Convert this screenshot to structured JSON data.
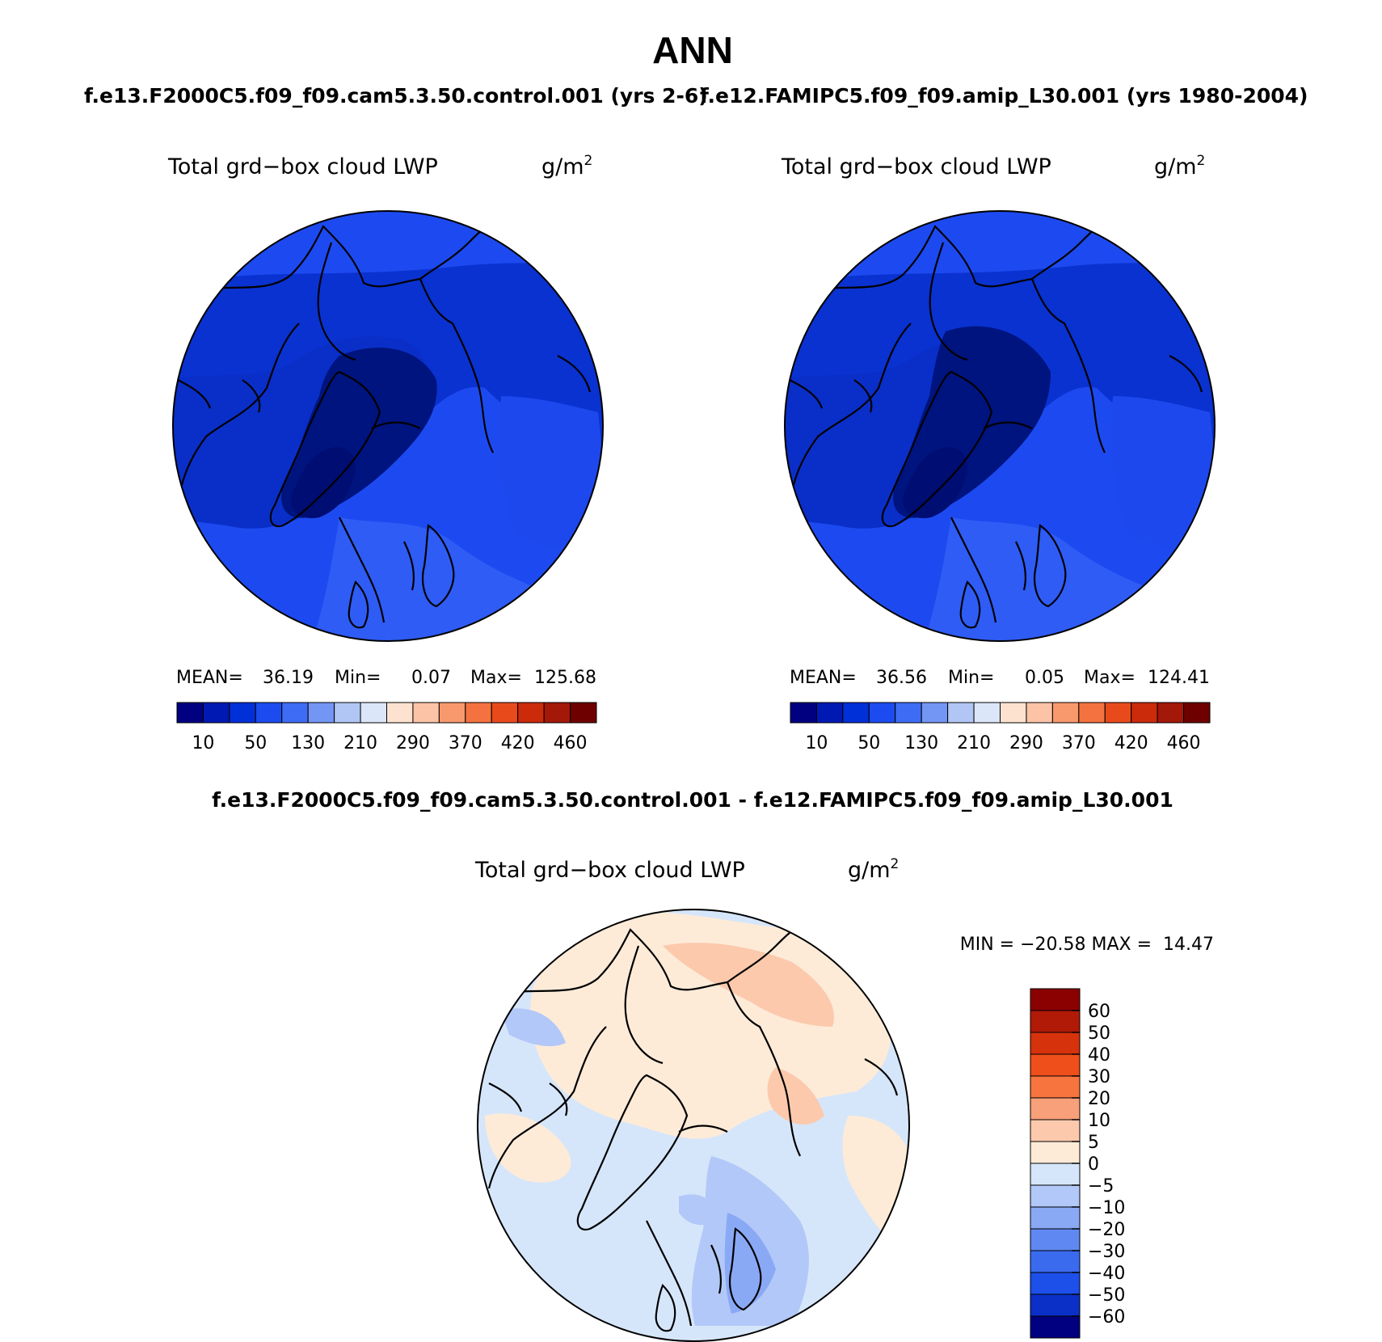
{
  "title": "ANN",
  "subtitle": {
    "case1": "f.e13.F2000C5.f09_f09.cam5.3.50.control.001 (yrs 2-6)",
    "case2": "f.e12.FAMIPC5.f09_f09.amip_L30.001 (yrs 1980-2004)"
  },
  "diff_title": "f.e13.F2000C5.f09_f09.cam5.3.50.control.001 - f.e12.FAMIPC5.f09_f09.amip_L30.001",
  "variable": "Total grd−box cloud LWP",
  "units_base": "g/m",
  "units_exp": "2",
  "panel1": {
    "mean_label": "MEAN=",
    "mean": "36.19",
    "min_label": "Min=",
    "min": "0.07",
    "max_label": "Max=",
    "max": "125.68"
  },
  "panel2": {
    "mean_label": "MEAN=",
    "mean": "36.56",
    "min_label": "Min=",
    "min": "0.05",
    "max_label": "Max=",
    "max": "124.41"
  },
  "diff_stats": "MIN = −20.58 MAX =  14.47",
  "abs_colorbar": {
    "colors": [
      "#000080",
      "#0019b3",
      "#0030d8",
      "#1c4cf0",
      "#3f6cf5",
      "#7396f5",
      "#b2c6f5",
      "#dbe6f8",
      "#fde3cf",
      "#fcc3a6",
      "#f8996d",
      "#f4723f",
      "#e94a1c",
      "#cb2b0b",
      "#a31808",
      "#6e0000"
    ],
    "labels": [
      "10",
      "50",
      "130",
      "210",
      "290",
      "370",
      "420",
      "460"
    ]
  },
  "diff_colorbar": {
    "colors_top_to_bottom": [
      "#8b0000",
      "#b21a08",
      "#d6320c",
      "#ef4f1a",
      "#f7743f",
      "#f8a07a",
      "#fcc9ac",
      "#fdebd8",
      "#d6e6fa",
      "#b2c8f8",
      "#8aa9f5",
      "#5f88f2",
      "#3a6bef",
      "#1c50e8",
      "#0a30c8",
      "#000080"
    ],
    "labels_top_to_bottom": [
      "60",
      "50",
      "40",
      "30",
      "20",
      "10",
      "5",
      "0",
      "−5",
      "−10",
      "−20",
      "−30",
      "−40",
      "−50",
      "−60"
    ]
  }
}
